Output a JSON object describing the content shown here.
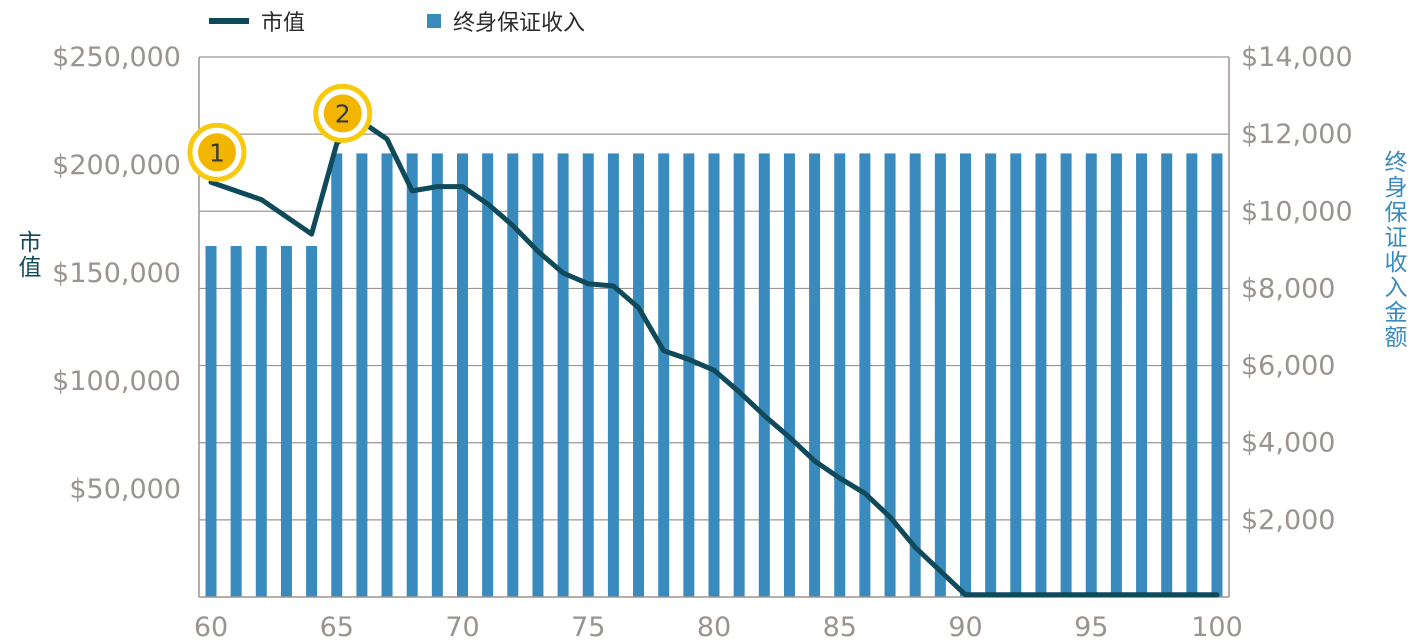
{
  "colors": {
    "line": "#0e4a5a",
    "bar": "#3a8bbd",
    "grid": "#9e9492",
    "tick_text": "#9a938f",
    "left_title": "#0e4a5a",
    "right_title": "#3a8bbd",
    "marker_fill": "#f3b600",
    "marker_ring": "#f7c90f"
  },
  "legend": {
    "line_label": "市值",
    "bar_label": "终身保证收入"
  },
  "axes": {
    "left_title": "市值",
    "right_title": "终身保证收入金额"
  },
  "chart_data": {
    "type": "bar",
    "x_range": [
      60,
      100
    ],
    "x_ticks": [
      60,
      65,
      70,
      75,
      80,
      85,
      90,
      95,
      100
    ],
    "x_tick_labels": [
      "60",
      "65",
      "70",
      "75",
      "80",
      "85",
      "90",
      "95",
      "100"
    ],
    "left_axis": {
      "range": [
        0,
        250000
      ],
      "ticks": [
        50000,
        100000,
        150000,
        200000,
        250000
      ],
      "tick_labels": [
        "$50,000",
        "$100,000",
        "$150,000",
        "$200,000",
        "$250,000"
      ]
    },
    "right_axis": {
      "range": [
        0,
        14000
      ],
      "ticks": [
        2000,
        4000,
        6000,
        8000,
        10000,
        12000,
        14000
      ],
      "tick_labels": [
        "$2,000",
        "$4,000",
        "$6,000",
        "$8,000",
        "$10,000",
        "$12,000",
        "$14,000"
      ]
    },
    "series": [
      {
        "name": "终身保证收入",
        "kind": "bar",
        "axis": "right",
        "x": [
          60,
          61,
          62,
          63,
          64,
          65,
          66,
          67,
          68,
          69,
          70,
          71,
          72,
          73,
          74,
          75,
          76,
          77,
          78,
          79,
          80,
          81,
          82,
          83,
          84,
          85,
          86,
          87,
          88,
          89,
          90,
          91,
          92,
          93,
          94,
          95,
          96,
          97,
          98,
          99,
          100
        ],
        "values": [
          9100,
          9100,
          9100,
          9100,
          9100,
          11500,
          11500,
          11500,
          11500,
          11500,
          11500,
          11500,
          11500,
          11500,
          11500,
          11500,
          11500,
          11500,
          11500,
          11500,
          11500,
          11500,
          11500,
          11500,
          11500,
          11500,
          11500,
          11500,
          11500,
          11500,
          11500,
          11500,
          11500,
          11500,
          11500,
          11500,
          11500,
          11500,
          11500,
          11500,
          11500
        ]
      },
      {
        "name": "市值",
        "kind": "line",
        "axis": "left",
        "x": [
          60,
          62,
          64,
          65,
          66,
          67,
          68,
          69,
          70,
          71,
          72,
          73,
          74,
          75,
          76,
          77,
          78,
          79,
          80,
          81,
          82,
          83,
          84,
          85,
          86,
          87,
          88,
          89,
          90,
          100
        ],
        "values": [
          192000,
          184000,
          168000,
          210000,
          220000,
          212000,
          188000,
          190000,
          190000,
          182000,
          172000,
          160000,
          150000,
          145000,
          144000,
          134000,
          114000,
          110000,
          105000,
          95000,
          84000,
          74000,
          63000,
          55000,
          48000,
          37000,
          23000,
          12000,
          1000,
          1000
        ]
      }
    ],
    "markers": [
      {
        "label": "1",
        "x": 60
      },
      {
        "label": "2",
        "x": 65
      }
    ]
  }
}
